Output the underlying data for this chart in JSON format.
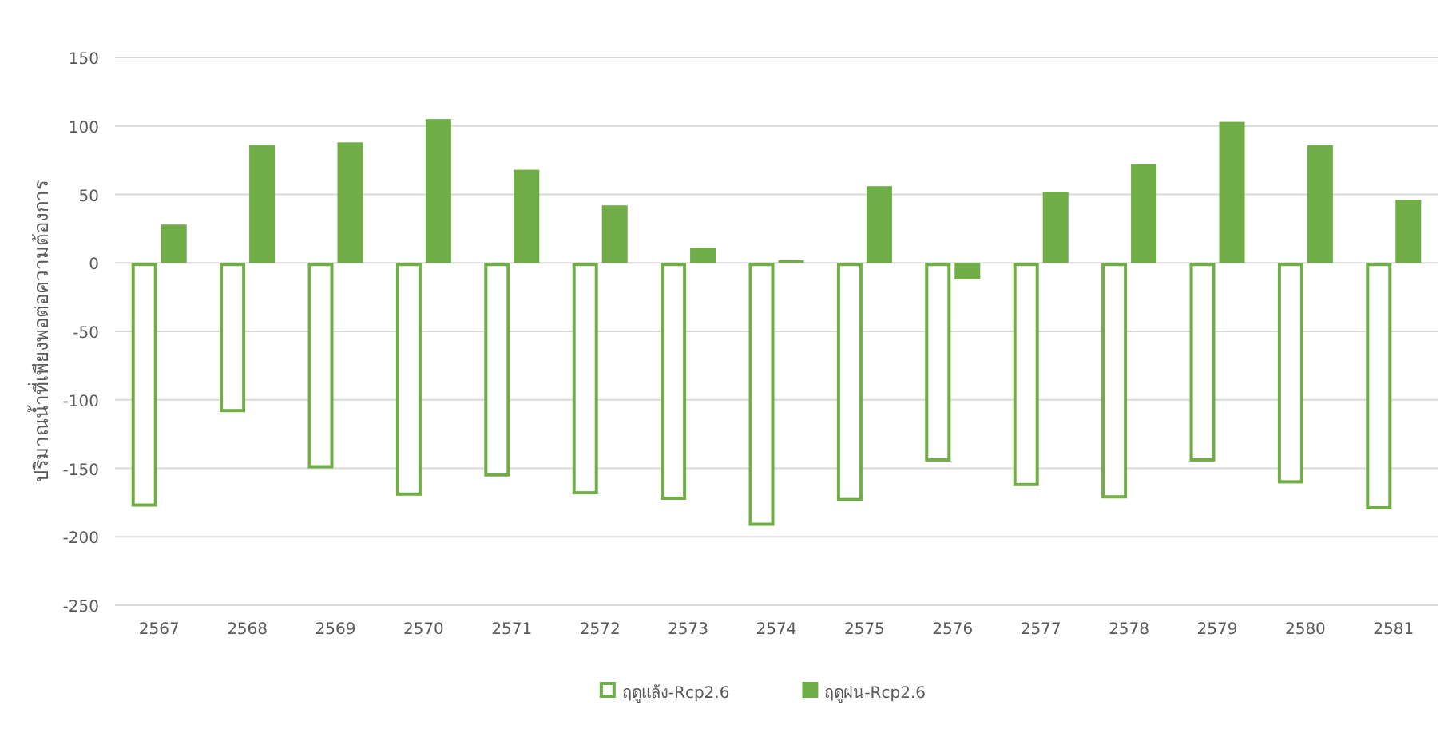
{
  "chart_data": {
    "type": "bar",
    "ylabel": "ปริมาณน้ำที่เพียงพอต่อความต้องการ",
    "categories": [
      "2567",
      "2568",
      "2569",
      "2570",
      "2571",
      "2572",
      "2573",
      "2574",
      "2575",
      "2576",
      "2577",
      "2578",
      "2579",
      "2580",
      "2581"
    ],
    "series": [
      {
        "name": "ฤดูแล้ง-Rcp2.6",
        "color": "#70ad47",
        "values": [
          -178,
          -109,
          -150,
          -170,
          -156,
          -169,
          -173,
          -192,
          -174,
          -145,
          -163,
          -172,
          -145,
          -161,
          -180
        ]
      },
      {
        "name": "ฤดูฝน-Rcp2.6",
        "color": "#70ad47",
        "values": [
          28,
          86,
          88,
          105,
          68,
          42,
          11,
          2,
          56,
          -12,
          52,
          72,
          103,
          86,
          46
        ]
      }
    ],
    "ylim": [
      -250,
      150
    ],
    "yticks": [
      -250,
      -200,
      -150,
      -100,
      -50,
      0,
      50,
      100,
      150
    ],
    "grid": "y",
    "legend": "bottom"
  }
}
